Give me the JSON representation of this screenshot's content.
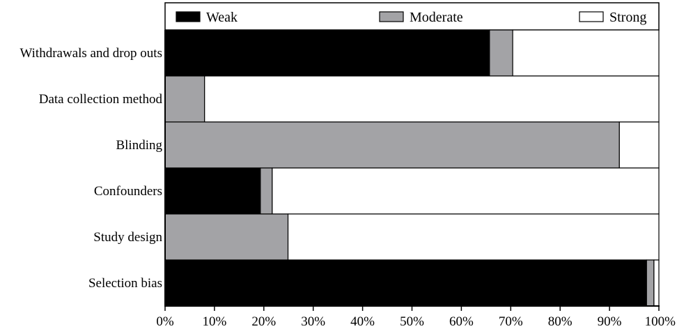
{
  "chart_data": {
    "type": "bar",
    "orientation": "horizontal",
    "stacked": true,
    "categories": [
      "Withdrawals and drop outs",
      "Data collection method",
      "Blinding",
      "Confounders",
      "Study design",
      "Selection bias"
    ],
    "series": [
      {
        "name": "Weak",
        "color": "#000000",
        "values": [
          65.7,
          0,
          0,
          19.3,
          0,
          97.5
        ]
      },
      {
        "name": "Moderate",
        "color": "#a3a3a6",
        "values": [
          4.7,
          8.0,
          92.0,
          2.4,
          24.9,
          1.5
        ]
      },
      {
        "name": "Strong",
        "color": "#ffffff",
        "values": [
          29.6,
          92.0,
          8.0,
          78.3,
          75.1,
          1.0
        ]
      }
    ],
    "xlim": [
      0,
      100
    ],
    "xticks": [
      0,
      10,
      20,
      30,
      40,
      50,
      60,
      70,
      80,
      90,
      100
    ],
    "xtick_labels": [
      "0%",
      "10%",
      "20%",
      "30%",
      "40%",
      "50%",
      "60%",
      "70%",
      "80%",
      "90%",
      "100%"
    ],
    "legend_position": "top",
    "grid": false
  }
}
